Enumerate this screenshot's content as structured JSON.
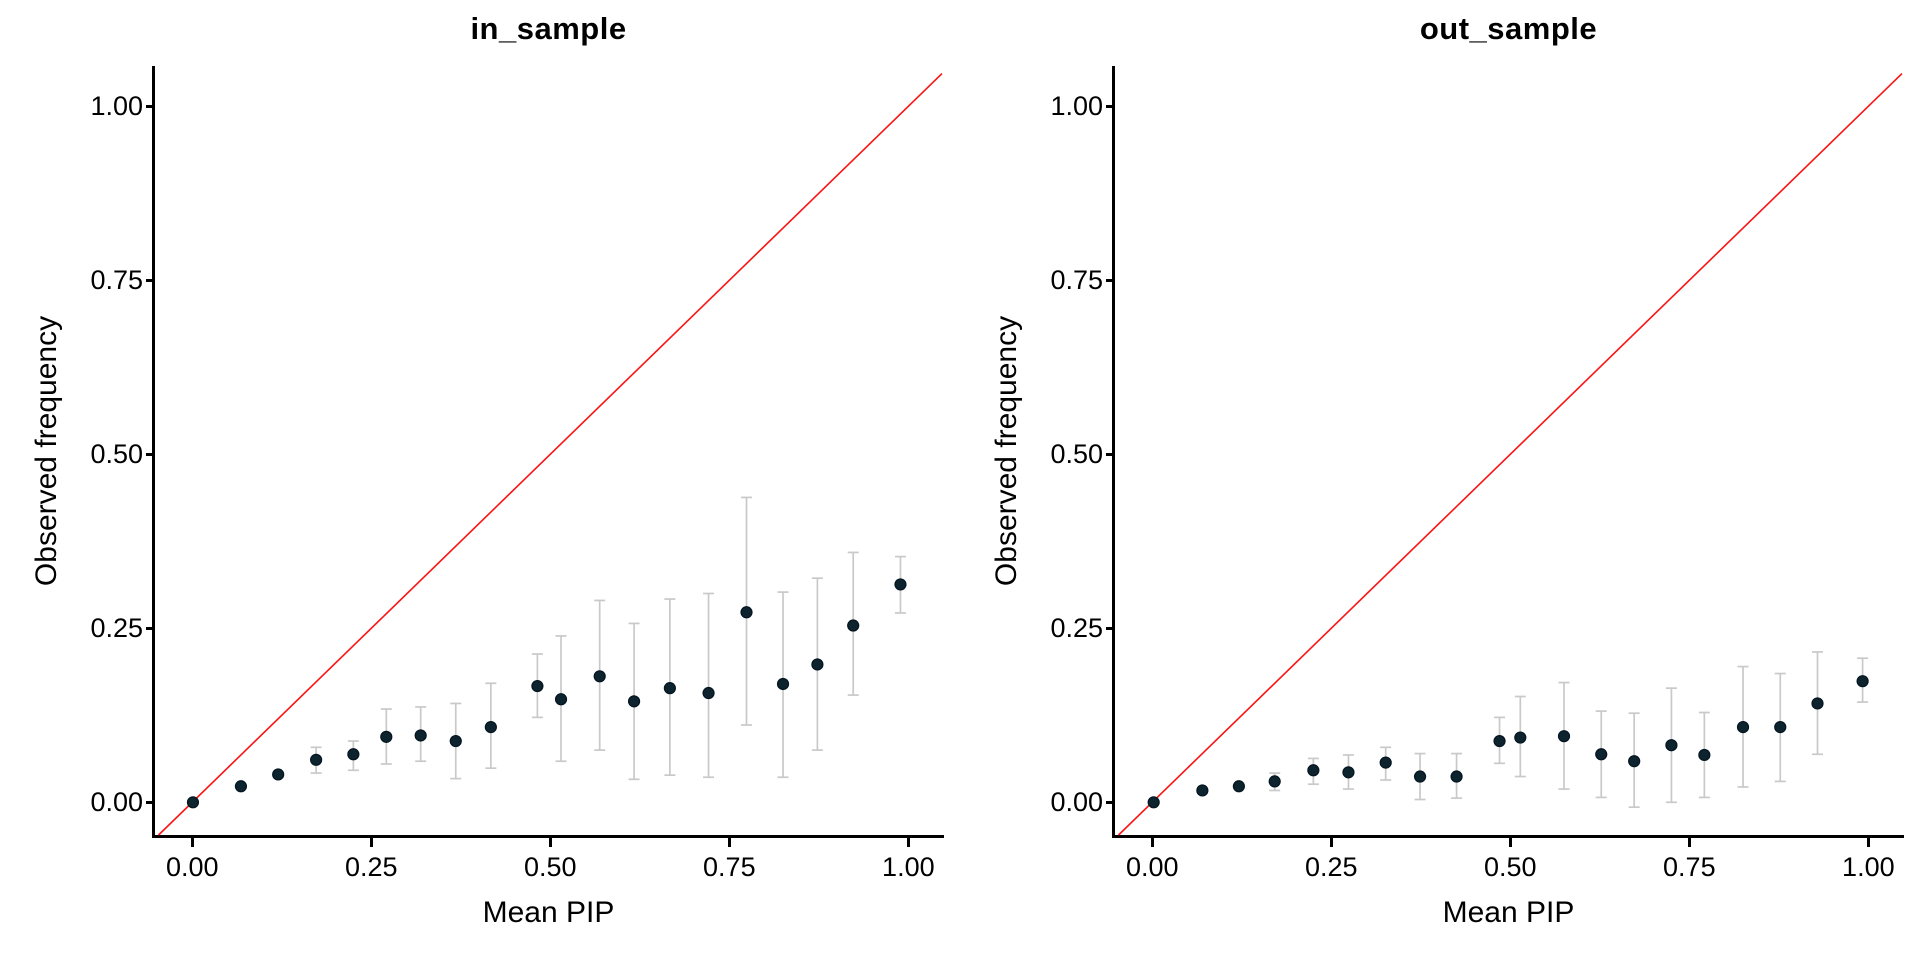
{
  "colors": {
    "point": "#0d232e",
    "point_outline": "#041520",
    "error_bar": "#c9c9c9",
    "identity_line": "#fa1414",
    "axis": "#000000",
    "text": "#000000",
    "background": "#ffffff"
  },
  "chart_data": [
    {
      "type": "scatter",
      "title": "in_sample",
      "xlabel": "Mean PIP",
      "ylabel": "Observed frequency",
      "xlim": [
        -0.052,
        1.047
      ],
      "ylim": [
        -0.047,
        1.055
      ],
      "grid": false,
      "legend": false,
      "identity_line": true,
      "xticks": {
        "values": [
          0,
          0.25,
          0.5,
          0.75,
          1.0
        ],
        "labels": [
          "0.00",
          "0.25",
          "0.50",
          "0.75",
          "1.00"
        ]
      },
      "yticks": {
        "values": [
          0,
          0.25,
          0.5,
          0.75,
          1.0
        ],
        "labels": [
          "0.00",
          "0.25",
          "0.50",
          "0.75",
          "1.00"
        ]
      },
      "x": [
        0.001,
        0.068,
        0.12,
        0.173,
        0.225,
        0.271,
        0.319,
        0.368,
        0.417,
        0.482,
        0.515,
        0.569,
        0.617,
        0.667,
        0.721,
        0.774,
        0.825,
        0.873,
        0.923,
        0.989
      ],
      "y": [
        0.0,
        0.023,
        0.04,
        0.061,
        0.069,
        0.094,
        0.096,
        0.088,
        0.108,
        0.167,
        0.148,
        0.181,
        0.145,
        0.164,
        0.157,
        0.273,
        0.17,
        0.198,
        0.254,
        0.313
      ],
      "err_lo": [
        null,
        null,
        null,
        0.042,
        0.046,
        0.055,
        0.059,
        0.034,
        0.049,
        0.122,
        0.059,
        0.075,
        0.033,
        0.039,
        0.036,
        0.111,
        0.036,
        0.075,
        0.154,
        0.272
      ],
      "err_hi": [
        null,
        null,
        null,
        0.079,
        0.088,
        0.134,
        0.137,
        0.142,
        0.171,
        0.213,
        0.239,
        0.29,
        0.257,
        0.292,
        0.3,
        0.438,
        0.302,
        0.322,
        0.359,
        0.353
      ]
    },
    {
      "type": "scatter",
      "title": "out_sample",
      "xlabel": "Mean PIP",
      "ylabel": "Observed frequency",
      "xlim": [
        -0.052,
        1.047
      ],
      "ylim": [
        -0.047,
        1.055
      ],
      "grid": false,
      "legend": false,
      "identity_line": true,
      "xticks": {
        "values": [
          0,
          0.25,
          0.5,
          0.75,
          1.0
        ],
        "labels": [
          "0.00",
          "0.25",
          "0.50",
          "0.75",
          "1.00"
        ]
      },
      "yticks": {
        "values": [
          0,
          0.25,
          0.5,
          0.75,
          1.0
        ],
        "labels": [
          "0.00",
          "0.25",
          "0.50",
          "0.75",
          "1.00"
        ]
      },
      "x": [
        0.002,
        0.07,
        0.121,
        0.171,
        0.225,
        0.274,
        0.326,
        0.374,
        0.425,
        0.485,
        0.514,
        0.575,
        0.627,
        0.673,
        0.725,
        0.771,
        0.825,
        0.877,
        0.929,
        0.992
      ],
      "y": [
        0.0,
        0.017,
        0.023,
        0.03,
        0.046,
        0.043,
        0.057,
        0.037,
        0.037,
        0.088,
        0.093,
        0.095,
        0.069,
        0.059,
        0.082,
        0.068,
        0.108,
        0.108,
        0.142,
        0.174
      ],
      "err_lo": [
        null,
        null,
        null,
        0.017,
        0.026,
        0.019,
        0.032,
        0.004,
        0.006,
        0.056,
        0.037,
        0.019,
        0.007,
        -0.007,
        0.0,
        0.007,
        0.022,
        0.03,
        0.069,
        0.144
      ],
      "err_hi": [
        null,
        null,
        null,
        0.042,
        0.063,
        0.068,
        0.079,
        0.07,
        0.07,
        0.122,
        0.152,
        0.172,
        0.131,
        0.128,
        0.164,
        0.129,
        0.195,
        0.185,
        0.216,
        0.207
      ]
    }
  ]
}
